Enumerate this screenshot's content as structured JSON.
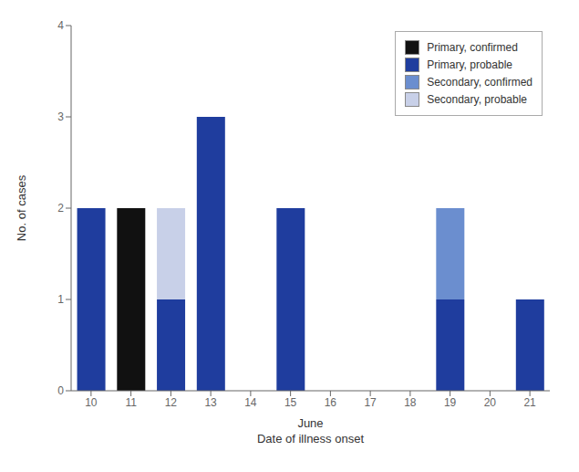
{
  "chart_data": {
    "type": "bar",
    "stacked": true,
    "categories": [
      "10",
      "11",
      "12",
      "13",
      "14",
      "15",
      "16",
      "17",
      "18",
      "19",
      "20",
      "21"
    ],
    "series": [
      {
        "name": "Primary, confirmed",
        "color": "#111111",
        "values": [
          0,
          2,
          0,
          0,
          0,
          0,
          0,
          0,
          0,
          0,
          0,
          0
        ]
      },
      {
        "name": "Primary, probable",
        "color": "#1f3d9e",
        "values": [
          2,
          0,
          1,
          3,
          0,
          2,
          0,
          0,
          0,
          1,
          0,
          1
        ]
      },
      {
        "name": "Secondary, confirmed",
        "color": "#6b8ecf",
        "values": [
          0,
          0,
          0,
          0,
          0,
          0,
          0,
          0,
          0,
          1,
          0,
          0
        ]
      },
      {
        "name": "Secondary, probable",
        "color": "#c8d0e8",
        "values": [
          0,
          0,
          1,
          0,
          0,
          0,
          0,
          0,
          0,
          0,
          0,
          0
        ]
      }
    ],
    "xlabel": "June\nDate of illness onset",
    "ylabel": "No. of cases",
    "ylim": [
      0,
      4
    ],
    "yticks": [
      0,
      1,
      2,
      3,
      4
    ],
    "legend": "upper right",
    "grid": false
  }
}
